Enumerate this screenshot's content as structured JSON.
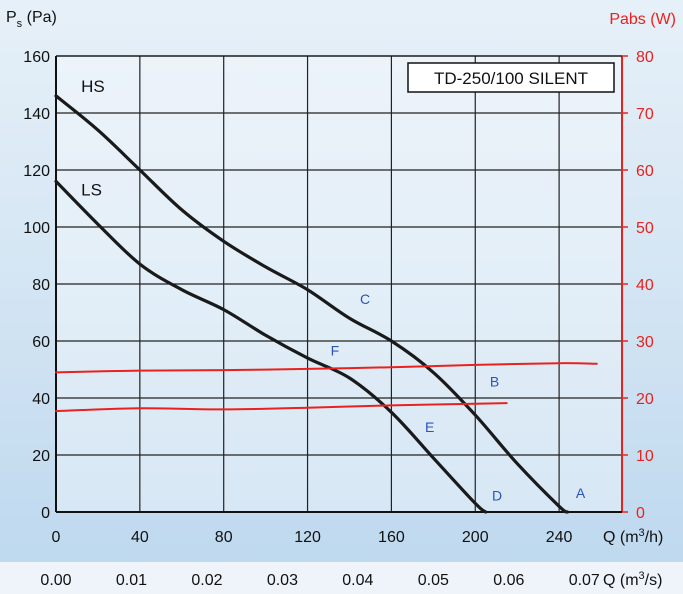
{
  "colors": {
    "pressure_curve": "#1a1a1a",
    "power_curve": "#e8231f",
    "point_label": "#2a55b8",
    "right_axis": "#e8231f",
    "grid": "#222222"
  },
  "chart_data": {
    "type": "line",
    "model_label": "TD-250/100 SILENT",
    "y_left_label_main": "P",
    "y_left_label_sub": "s",
    "y_left_label_unit": " (Pa)",
    "y_right_label": "Pabs (W)",
    "x_label_top": "Q (m",
    "x_label_top_sup": "3",
    "x_label_top_end": "/h)",
    "x_label_bottom": "Q (m",
    "x_label_bottom_sup": "3",
    "x_label_bottom_end": "/s)",
    "ylim_left": [
      0,
      160
    ],
    "ylim_right": [
      0,
      80
    ],
    "xlim": [
      0,
      270
    ],
    "grid": true,
    "y_left_ticks": [
      "0",
      "20",
      "40",
      "60",
      "80",
      "100",
      "120",
      "140",
      "160"
    ],
    "y_right_ticks": [
      "0",
      "10",
      "20",
      "30",
      "40",
      "50",
      "60",
      "70",
      "80"
    ],
    "x_ticks_m3h": [
      "0",
      "40",
      "80",
      "120",
      "160",
      "200",
      "240"
    ],
    "x_ticks_m3s": [
      "0.00",
      "0.01",
      "0.02",
      "0.03",
      "0.04",
      "0.05",
      "0.06",
      "0.07"
    ],
    "x_ticks_m3s_values": [
      0,
      36,
      72,
      108,
      144,
      180,
      216,
      252
    ],
    "series": [
      {
        "name": "HS",
        "axis": "left",
        "x": [
          0,
          20,
          40,
          60,
          80,
          100,
          120,
          140,
          160,
          180,
          200,
          220,
          240,
          244
        ],
        "y": [
          146,
          134,
          120,
          106,
          95,
          86,
          78,
          68,
          60,
          49,
          34,
          17,
          2,
          0
        ]
      },
      {
        "name": "LS",
        "axis": "left",
        "x": [
          0,
          20,
          40,
          60,
          80,
          100,
          120,
          140,
          160,
          180,
          200,
          205
        ],
        "y": [
          116,
          101,
          87,
          78,
          71,
          62,
          54,
          47,
          35,
          19,
          3,
          0
        ]
      },
      {
        "name": "",
        "axis": "right",
        "x": [
          0,
          40,
          80,
          120,
          160,
          200,
          240,
          258
        ],
        "y": [
          24.5,
          24.8,
          24.9,
          25.1,
          25.4,
          25.8,
          26.1,
          26
        ]
      },
      {
        "name": "",
        "axis": "right",
        "x": [
          0,
          40,
          80,
          120,
          160,
          200,
          215
        ],
        "y": [
          17.7,
          18.2,
          18,
          18.3,
          18.7,
          19,
          19.1
        ]
      }
    ],
    "point_labels": [
      {
        "label": "A",
        "x": 248,
        "y": 5
      },
      {
        "label": "B",
        "x": 207,
        "y": 44
      },
      {
        "label": "C",
        "x": 145,
        "y": 73
      },
      {
        "label": "D",
        "x": 208,
        "y": 4
      },
      {
        "label": "E",
        "x": 176,
        "y": 28
      },
      {
        "label": "F",
        "x": 131,
        "y": 55
      }
    ]
  }
}
